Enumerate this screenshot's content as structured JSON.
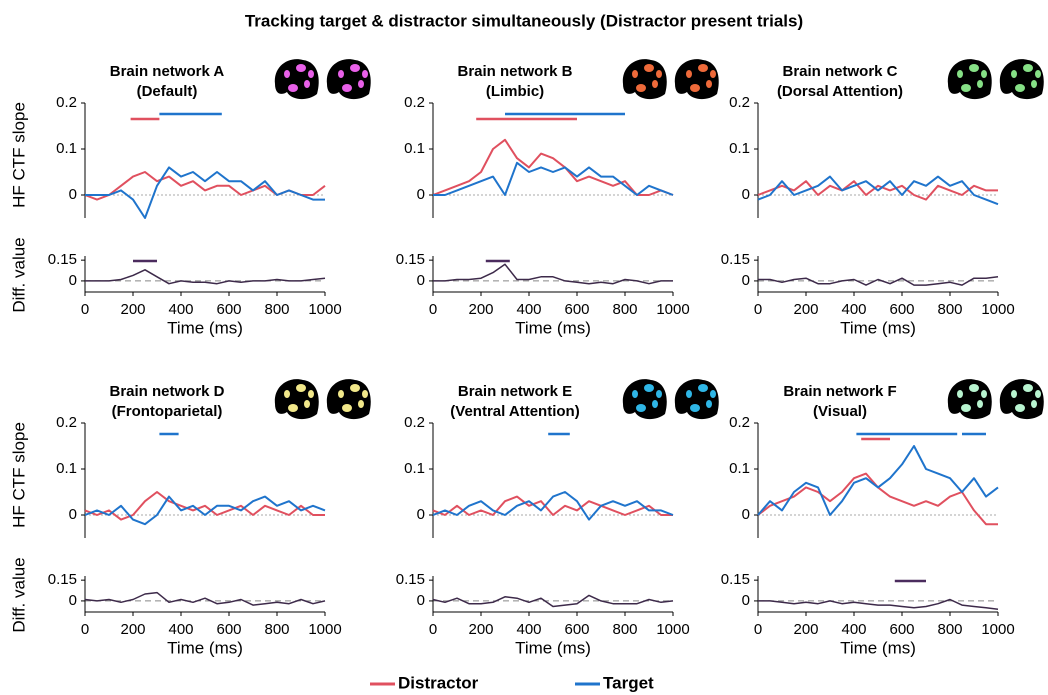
{
  "title": "Tracking target & distractor simultaneously (Distractor present trials)",
  "chart_data": [
    {
      "type": "line",
      "title": "Brain network A",
      "subtitle": "(Default)",
      "ylabel": "HF CTF slope",
      "x": [
        0,
        50,
        100,
        150,
        200,
        250,
        300,
        350,
        400,
        450,
        500,
        550,
        600,
        650,
        700,
        750,
        800,
        850,
        900,
        950,
        1000
      ],
      "series": [
        {
          "name": "Distractor",
          "color": "#e0505f",
          "values": [
            0,
            -0.01,
            0,
            0.02,
            0.04,
            0.05,
            0.03,
            0.04,
            0.02,
            0.03,
            0.01,
            0.02,
            0.02,
            0,
            0.01,
            0.02,
            0,
            0.01,
            0,
            0,
            0.02
          ],
          "sig": [
            [
              190,
              310
            ]
          ]
        },
        {
          "name": "Target",
          "color": "#1f74cc",
          "values": [
            0,
            0,
            0,
            0.01,
            -0.01,
            -0.05,
            0.02,
            0.06,
            0.04,
            0.05,
            0.03,
            0.05,
            0.03,
            0.03,
            0.01,
            0.03,
            0,
            0.01,
            0,
            -0.01,
            -0.01
          ],
          "sig": [
            [
              310,
              570
            ]
          ]
        }
      ],
      "xlim": [
        0,
        1000
      ],
      "ylim": [
        -0.05,
        0.2
      ],
      "yticks": [
        0,
        0.1,
        0.2
      ]
    },
    {
      "type": "line",
      "xlabel": "Time (ms)",
      "ylabel": "Diff. value",
      "x": [
        0,
        50,
        100,
        150,
        200,
        250,
        300,
        350,
        400,
        450,
        500,
        550,
        600,
        650,
        700,
        750,
        800,
        850,
        900,
        950,
        1000
      ],
      "series": [
        {
          "color": "#3d2a4a",
          "values": [
            0,
            0,
            0,
            0.01,
            0.04,
            0.08,
            0.03,
            -0.02,
            0,
            -0.01,
            -0.01,
            -0.02,
            0,
            -0.01,
            0,
            0,
            0.01,
            0,
            0,
            0.01,
            0.02
          ],
          "sig": [
            [
              200,
              300
            ]
          ]
        }
      ],
      "xlim": [
        0,
        1000
      ],
      "xticks": [
        0,
        200,
        400,
        600,
        800,
        1000
      ],
      "ylim": [
        -0.08,
        0.18
      ],
      "yticks": [
        0,
        0.15
      ]
    },
    {
      "type": "line",
      "title": "Brain network B",
      "subtitle": "(Limbic)",
      "x": [
        0,
        50,
        100,
        150,
        200,
        250,
        300,
        350,
        400,
        450,
        500,
        550,
        600,
        650,
        700,
        750,
        800,
        850,
        900,
        950,
        1000
      ],
      "series": [
        {
          "name": "Distractor",
          "color": "#e0505f",
          "values": [
            0,
            0.01,
            0.02,
            0.03,
            0.05,
            0.1,
            0.12,
            0.08,
            0.06,
            0.09,
            0.08,
            0.06,
            0.03,
            0.04,
            0.03,
            0.02,
            0.03,
            0,
            0,
            0.01,
            0
          ],
          "sig": [
            [
              180,
              600
            ]
          ]
        },
        {
          "name": "Target",
          "color": "#1f74cc",
          "values": [
            0,
            0,
            0.01,
            0.02,
            0.03,
            0.04,
            0,
            0.07,
            0.05,
            0.06,
            0.05,
            0.06,
            0.04,
            0.06,
            0.04,
            0.04,
            0.02,
            0,
            0.02,
            0.01,
            0
          ],
          "sig": [
            [
              300,
              800
            ]
          ]
        }
      ],
      "xlim": [
        0,
        1000
      ],
      "ylim": [
        -0.05,
        0.2
      ],
      "yticks": [
        0,
        0.1,
        0.2
      ]
    },
    {
      "type": "line",
      "xlabel": "Time (ms)",
      "x": [
        0,
        50,
        100,
        150,
        200,
        250,
        300,
        350,
        400,
        450,
        500,
        550,
        600,
        650,
        700,
        750,
        800,
        850,
        900,
        950,
        1000
      ],
      "series": [
        {
          "color": "#3d2a4a",
          "values": [
            0,
            0,
            0.01,
            0.01,
            0.02,
            0.06,
            0.12,
            0.01,
            0.01,
            0.03,
            0.03,
            0,
            -0.01,
            -0.02,
            -0.01,
            -0.02,
            0.01,
            0,
            -0.02,
            0,
            0
          ],
          "sig": [
            [
              220,
              320
            ]
          ]
        }
      ],
      "xlim": [
        0,
        1000
      ],
      "xticks": [
        0,
        200,
        400,
        600,
        800,
        1000
      ],
      "ylim": [
        -0.08,
        0.18
      ],
      "yticks": [
        0,
        0.15
      ]
    },
    {
      "type": "line",
      "title": "Brain network C",
      "subtitle": "(Dorsal Attention)",
      "x": [
        0,
        50,
        100,
        150,
        200,
        250,
        300,
        350,
        400,
        450,
        500,
        550,
        600,
        650,
        700,
        750,
        800,
        850,
        900,
        950,
        1000
      ],
      "series": [
        {
          "name": "Distractor",
          "color": "#e0505f",
          "values": [
            0,
            0.01,
            0.02,
            0.01,
            0.03,
            0,
            0.02,
            0.01,
            0.03,
            0,
            0.02,
            0.01,
            0.02,
            0,
            -0.01,
            0.02,
            0.01,
            0,
            0.02,
            0.01,
            0.01
          ],
          "sig": []
        },
        {
          "name": "Target",
          "color": "#1f74cc",
          "values": [
            -0.01,
            0,
            0.03,
            0,
            0.01,
            0.02,
            0.04,
            0.01,
            0.02,
            0.03,
            0.01,
            0.03,
            0,
            0.03,
            0.02,
            0.04,
            0.02,
            0.03,
            0,
            -0.01,
            -0.02
          ],
          "sig": []
        }
      ],
      "xlim": [
        0,
        1000
      ],
      "ylim": [
        -0.05,
        0.2
      ],
      "yticks": [
        0,
        0.1,
        0.2
      ]
    },
    {
      "type": "line",
      "xlabel": "Time (ms)",
      "x": [
        0,
        50,
        100,
        150,
        200,
        250,
        300,
        350,
        400,
        450,
        500,
        550,
        600,
        650,
        700,
        750,
        800,
        850,
        900,
        950,
        1000
      ],
      "series": [
        {
          "color": "#3d2a4a",
          "values": [
            0.01,
            0.01,
            -0.01,
            0.01,
            0.02,
            -0.02,
            -0.02,
            0,
            0.01,
            -0.03,
            0.01,
            -0.02,
            0.02,
            -0.03,
            -0.03,
            -0.02,
            -0.01,
            -0.03,
            0.02,
            0.02,
            0.03
          ],
          "sig": []
        }
      ],
      "xlim": [
        0,
        1000
      ],
      "xticks": [
        0,
        200,
        400,
        600,
        800,
        1000
      ],
      "ylim": [
        -0.08,
        0.18
      ],
      "yticks": [
        0,
        0.15
      ]
    },
    {
      "type": "line",
      "title": "Brain network D",
      "subtitle": "(Frontoparietal)",
      "ylabel": "HF CTF slope",
      "x": [
        0,
        50,
        100,
        150,
        200,
        250,
        300,
        350,
        400,
        450,
        500,
        550,
        600,
        650,
        700,
        750,
        800,
        850,
        900,
        950,
        1000
      ],
      "series": [
        {
          "name": "Distractor",
          "color": "#e0505f",
          "values": [
            0.01,
            0,
            0.01,
            -0.01,
            0,
            0.03,
            0.05,
            0.03,
            0.02,
            0.01,
            0.02,
            0,
            0.01,
            0.02,
            0,
            0.02,
            0.01,
            0,
            0.02,
            0,
            0
          ],
          "sig": []
        },
        {
          "name": "Target",
          "color": "#1f74cc",
          "values": [
            0,
            0.01,
            0,
            0.02,
            -0.01,
            -0.02,
            0,
            0.04,
            0.01,
            0.02,
            0,
            0.02,
            0.02,
            0.01,
            0.03,
            0.04,
            0.02,
            0.03,
            0.01,
            0.02,
            0.01
          ],
          "sig": [
            [
              310,
              390
            ]
          ]
        }
      ],
      "xlim": [
        0,
        1000
      ],
      "ylim": [
        -0.05,
        0.2
      ],
      "yticks": [
        0,
        0.1,
        0.2
      ]
    },
    {
      "type": "line",
      "xlabel": "Time (ms)",
      "ylabel": "Diff. value",
      "x": [
        0,
        50,
        100,
        150,
        200,
        250,
        300,
        350,
        400,
        450,
        500,
        550,
        600,
        650,
        700,
        750,
        800,
        850,
        900,
        950,
        1000
      ],
      "series": [
        {
          "color": "#3d2a4a",
          "values": [
            0.01,
            0,
            0.01,
            -0.01,
            0.01,
            0.05,
            0.06,
            -0.01,
            0.01,
            -0.01,
            0.02,
            -0.02,
            -0.01,
            0.01,
            -0.03,
            -0.02,
            -0.01,
            -0.02,
            0.01,
            -0.02,
            0
          ],
          "sig": []
        }
      ],
      "xlim": [
        0,
        1000
      ],
      "xticks": [
        0,
        200,
        400,
        600,
        800,
        1000
      ],
      "ylim": [
        -0.08,
        0.18
      ],
      "yticks": [
        0,
        0.15
      ]
    },
    {
      "type": "line",
      "title": "Brain network E",
      "subtitle": "(Ventral Attention)",
      "x": [
        0,
        50,
        100,
        150,
        200,
        250,
        300,
        350,
        400,
        450,
        500,
        550,
        600,
        650,
        700,
        750,
        800,
        850,
        900,
        950,
        1000
      ],
      "series": [
        {
          "name": "Distractor",
          "color": "#e0505f",
          "values": [
            0.01,
            0,
            0.02,
            0,
            0.01,
            0,
            0.03,
            0.04,
            0.02,
            0.03,
            0,
            0.02,
            0.01,
            0.03,
            0.02,
            0.01,
            0,
            0.01,
            0.02,
            0,
            0
          ],
          "sig": []
        },
        {
          "name": "Target",
          "color": "#1f74cc",
          "values": [
            0,
            0.01,
            0,
            0.02,
            0.03,
            0.01,
            0,
            0.02,
            0.03,
            0.01,
            0.04,
            0.05,
            0.03,
            -0.01,
            0.02,
            0.03,
            0.02,
            0.03,
            0.01,
            0.01,
            0
          ],
          "sig": [
            [
              480,
              570
            ]
          ]
        }
      ],
      "xlim": [
        0,
        1000
      ],
      "ylim": [
        -0.05,
        0.2
      ],
      "yticks": [
        0,
        0.1,
        0.2
      ]
    },
    {
      "type": "line",
      "xlabel": "Time (ms)",
      "x": [
        0,
        50,
        100,
        150,
        200,
        250,
        300,
        350,
        400,
        450,
        500,
        550,
        600,
        650,
        700,
        750,
        800,
        850,
        900,
        950,
        1000
      ],
      "series": [
        {
          "color": "#3d2a4a",
          "values": [
            0.01,
            -0.01,
            0.02,
            -0.02,
            -0.02,
            -0.01,
            0.03,
            0.02,
            -0.01,
            0.02,
            -0.04,
            -0.03,
            -0.02,
            0.04,
            0,
            -0.02,
            -0.02,
            -0.02,
            0.01,
            -0.01,
            0
          ],
          "sig": []
        }
      ],
      "xlim": [
        0,
        1000
      ],
      "xticks": [
        0,
        200,
        400,
        600,
        800,
        1000
      ],
      "ylim": [
        -0.08,
        0.18
      ],
      "yticks": [
        0,
        0.15
      ]
    },
    {
      "type": "line",
      "title": "Brain network F",
      "subtitle": "(Visual)",
      "x": [
        0,
        50,
        100,
        150,
        200,
        250,
        300,
        350,
        400,
        450,
        500,
        550,
        600,
        650,
        700,
        750,
        800,
        850,
        900,
        950,
        1000
      ],
      "series": [
        {
          "name": "Distractor",
          "color": "#e0505f",
          "values": [
            0,
            0.02,
            0.03,
            0.04,
            0.06,
            0.05,
            0.03,
            0.05,
            0.08,
            0.09,
            0.06,
            0.04,
            0.03,
            0.02,
            0.03,
            0.02,
            0.04,
            0.05,
            0.01,
            -0.02,
            -0.02
          ],
          "sig": [
            [
              430,
              550
            ]
          ]
        },
        {
          "name": "Target",
          "color": "#1f74cc",
          "values": [
            0,
            0.03,
            0.01,
            0.05,
            0.07,
            0.06,
            0,
            0.03,
            0.07,
            0.08,
            0.06,
            0.08,
            0.11,
            0.15,
            0.1,
            0.09,
            0.08,
            0.05,
            0.08,
            0.04,
            0.06
          ],
          "sig": [
            [
              410,
              830
            ],
            [
              850,
              950
            ]
          ]
        }
      ],
      "xlim": [
        0,
        1000
      ],
      "ylim": [
        -0.05,
        0.2
      ],
      "yticks": [
        0,
        0.1,
        0.2
      ]
    },
    {
      "type": "line",
      "xlabel": "Time (ms)",
      "x": [
        0,
        50,
        100,
        150,
        200,
        250,
        300,
        350,
        400,
        450,
        500,
        550,
        600,
        650,
        700,
        750,
        800,
        850,
        900,
        950,
        1000
      ],
      "series": [
        {
          "color": "#3d2a4a",
          "values": [
            0,
            0,
            -0.01,
            -0.02,
            -0.01,
            -0.02,
            0,
            -0.02,
            -0.01,
            -0.02,
            -0.03,
            -0.03,
            -0.04,
            -0.05,
            -0.04,
            -0.02,
            0.01,
            -0.03,
            -0.04,
            -0.05,
            -0.06
          ],
          "sig": [
            [
              570,
              700
            ]
          ]
        }
      ],
      "xlim": [
        0,
        1000
      ],
      "xticks": [
        0,
        200,
        400,
        600,
        800,
        1000
      ],
      "ylim": [
        -0.08,
        0.18
      ],
      "yticks": [
        0,
        0.15
      ]
    }
  ]
}
